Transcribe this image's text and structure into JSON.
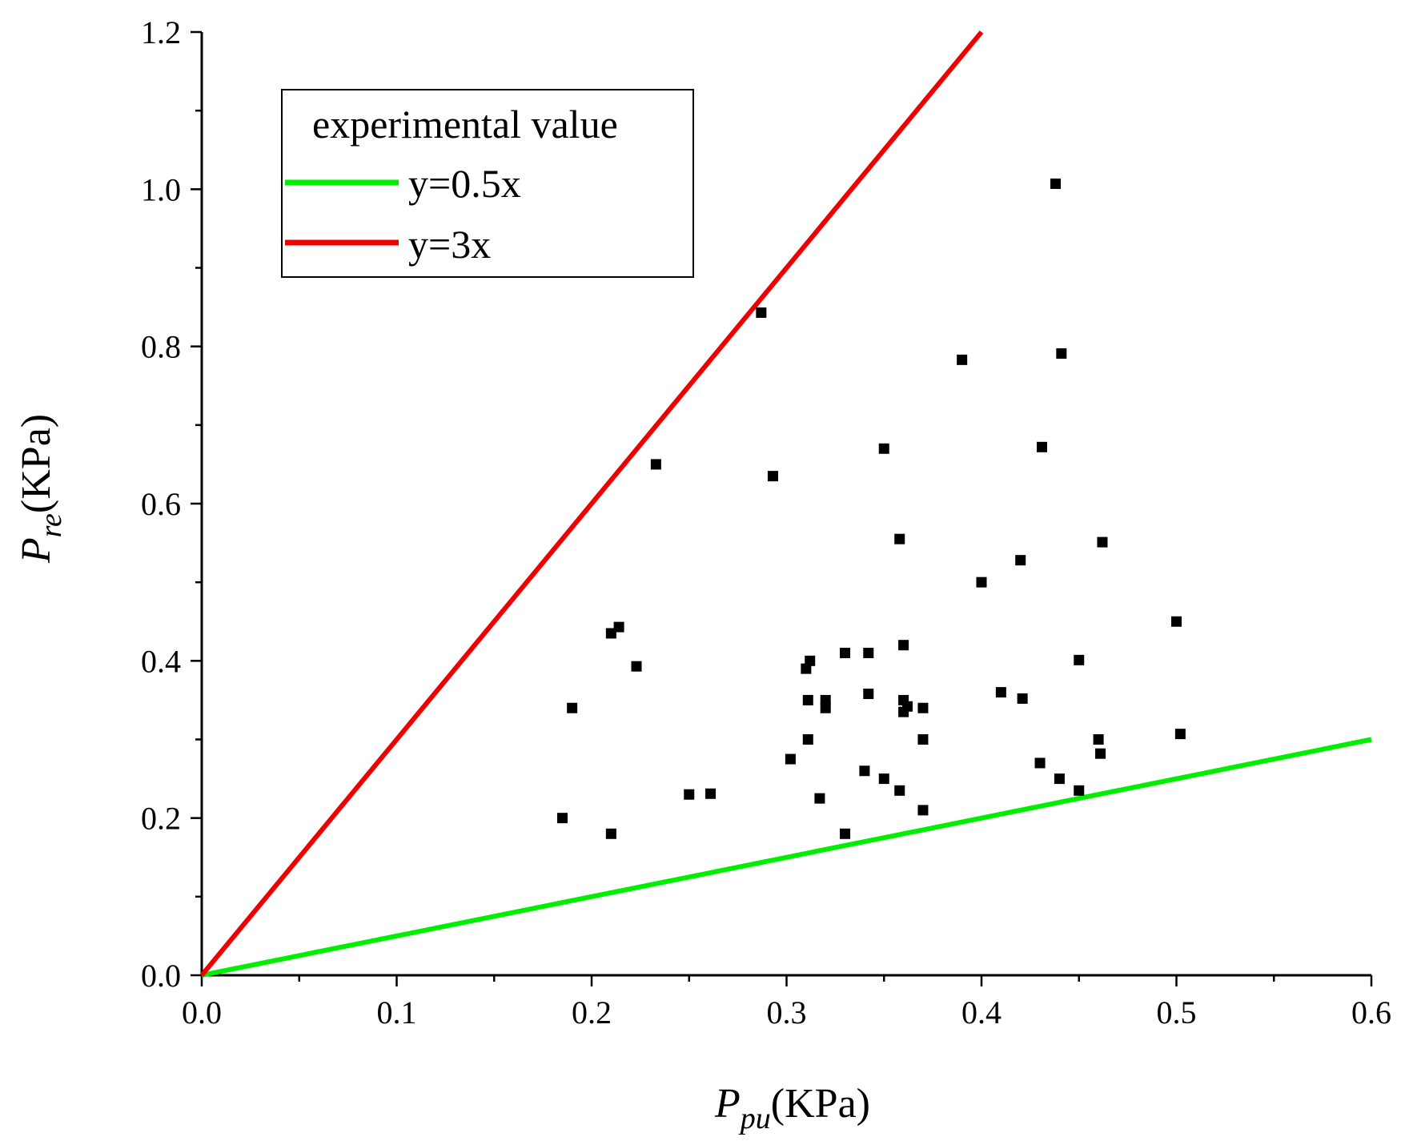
{
  "chart_data": {
    "type": "scatter",
    "title": "",
    "xlabel": {
      "main": "P",
      "sub": "pu",
      "unit": "(KPa)"
    },
    "ylabel": {
      "main": "P",
      "sub": "re",
      "unit": "(KPa)"
    },
    "xlim": [
      0,
      0.6
    ],
    "ylim": [
      0,
      1.2
    ],
    "x_ticks": [
      "0.0",
      "0.1",
      "0.2",
      "0.3",
      "0.4",
      "0.5",
      "0.6"
    ],
    "y_ticks": [
      "0.0",
      "0.2",
      "0.4",
      "0.6",
      "0.8",
      "1.0",
      "1.2"
    ],
    "grid": false,
    "legend_position": "top-left",
    "legend": [
      {
        "label": "experimental value",
        "kind": "scatter"
      },
      {
        "label": "y=0.5x",
        "kind": "line",
        "color": "#00ee00"
      },
      {
        "label": "y=3x",
        "kind": "line",
        "color": "#ee0000"
      }
    ],
    "lines": [
      {
        "name": "y=0.5x",
        "slope": 0.5,
        "x_range": [
          0,
          0.6
        ],
        "color": "#00ee00"
      },
      {
        "name": "y=3x",
        "slope": 3,
        "x_range": [
          0,
          0.4
        ],
        "color": "#ee0000"
      }
    ],
    "series": [
      {
        "name": "experimental value",
        "marker": "square",
        "color": "#000000",
        "points": [
          [
            0.185,
            0.2
          ],
          [
            0.19,
            0.34
          ],
          [
            0.21,
            0.435
          ],
          [
            0.214,
            0.443
          ],
          [
            0.21,
            0.18
          ],
          [
            0.223,
            0.393
          ],
          [
            0.233,
            0.65
          ],
          [
            0.25,
            0.23
          ],
          [
            0.261,
            0.231
          ],
          [
            0.287,
            0.843
          ],
          [
            0.293,
            0.635
          ],
          [
            0.302,
            0.275
          ],
          [
            0.31,
            0.39
          ],
          [
            0.312,
            0.4
          ],
          [
            0.311,
            0.35
          ],
          [
            0.311,
            0.3
          ],
          [
            0.317,
            0.225
          ],
          [
            0.32,
            0.35
          ],
          [
            0.32,
            0.34
          ],
          [
            0.33,
            0.41
          ],
          [
            0.33,
            0.18
          ],
          [
            0.34,
            0.26
          ],
          [
            0.342,
            0.41
          ],
          [
            0.342,
            0.358
          ],
          [
            0.35,
            0.25
          ],
          [
            0.35,
            0.67
          ],
          [
            0.358,
            0.235
          ],
          [
            0.358,
            0.555
          ],
          [
            0.36,
            0.42
          ],
          [
            0.36,
            0.35
          ],
          [
            0.36,
            0.335
          ],
          [
            0.362,
            0.342
          ],
          [
            0.37,
            0.34
          ],
          [
            0.37,
            0.3
          ],
          [
            0.37,
            0.21
          ],
          [
            0.39,
            0.783
          ],
          [
            0.4,
            0.5
          ],
          [
            0.41,
            0.36
          ],
          [
            0.42,
            0.528
          ],
          [
            0.421,
            0.352
          ],
          [
            0.43,
            0.27
          ],
          [
            0.431,
            0.672
          ],
          [
            0.438,
            1.007
          ],
          [
            0.44,
            0.25
          ],
          [
            0.441,
            0.791
          ],
          [
            0.45,
            0.401
          ],
          [
            0.45,
            0.235
          ],
          [
            0.46,
            0.3
          ],
          [
            0.461,
            0.282
          ],
          [
            0.462,
            0.551
          ],
          [
            0.5,
            0.45
          ],
          [
            0.502,
            0.307
          ]
        ]
      }
    ]
  }
}
